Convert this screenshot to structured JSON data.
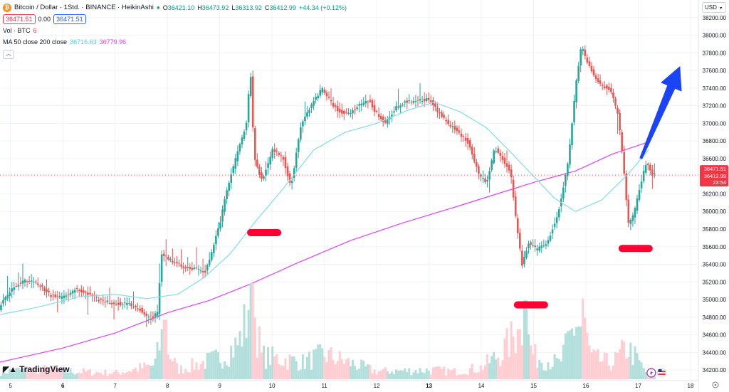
{
  "legend": {
    "symbol": "Bitcoin / Dollar · 1Std. · BINANCE · HeikinAshi",
    "ohlc": [
      {
        "k": "O",
        "v": "36421.10"
      },
      {
        "k": "H",
        "v": "36473.92"
      },
      {
        "k": "L",
        "v": "36313.92"
      },
      {
        "k": "C",
        "v": "36412.99"
      }
    ],
    "change": "+44.34 (+0.12%)",
    "bid": "36471.51",
    "spread": "0.00",
    "ask": "36471.51",
    "vol_label": "Vol · BTC",
    "vol_value": "6",
    "ma_label": "MA 50 close 200 close",
    "ma50_value": "36716.63",
    "ma200_value": "36779.96"
  },
  "currency": "USD",
  "branding": "TradingView",
  "price_tags": {
    "last": "36471.51",
    "close": "36412.99",
    "countdown": "23:54"
  },
  "colors": {
    "up": "#26a69a",
    "down": "#ef5350",
    "ma50": "#80deea",
    "ma200": "#e040fb",
    "arrow": "#1a44f5",
    "marker": "#ff0033"
  },
  "chart_data": {
    "type": "candlestick",
    "xlim": [
      4.8,
      18.15
    ],
    "ylim": [
      34080,
      38400
    ],
    "y_ticks": [
      34200,
      34400,
      34600,
      34800,
      35000,
      35200,
      35400,
      35600,
      35800,
      36000,
      36200,
      36400,
      36600,
      36800,
      37000,
      37200,
      37400,
      37600,
      37800,
      38000,
      38200
    ],
    "y_tick_labels": [
      "34200.00",
      "34400.00",
      "34600.00",
      "34800.00",
      "35000.00",
      "35200.00",
      "35400.00",
      "35600.00",
      "35800.00",
      "36000.00",
      "36200.00",
      "36400.00",
      "36600.00",
      "36800.00",
      "37000.00",
      "37200.00",
      "37400.00",
      "37600.00",
      "37800.00",
      "38000.00",
      "38200.00"
    ],
    "x_ticks": [
      5,
      6,
      7,
      8,
      9,
      10,
      11,
      12,
      13,
      14,
      15,
      16,
      17,
      18
    ],
    "x_tick_labels": [
      "5",
      "6",
      "7",
      "8",
      "9",
      "10",
      "11",
      "12",
      "13",
      "14",
      "15",
      "16",
      "17",
      "18"
    ],
    "x_tick_bold": [
      false,
      true,
      false,
      false,
      false,
      false,
      false,
      false,
      true,
      false,
      false,
      false,
      false,
      false
    ],
    "price_path": [
      [
        4.8,
        34880
      ],
      [
        5.05,
        35120
      ],
      [
        5.3,
        35220
      ],
      [
        5.55,
        35180
      ],
      [
        5.8,
        35050
      ],
      [
        6.05,
        35020
      ],
      [
        6.3,
        35120
      ],
      [
        6.55,
        35050
      ],
      [
        6.8,
        34980
      ],
      [
        7.05,
        34960
      ],
      [
        7.3,
        34950
      ],
      [
        7.5,
        34900
      ],
      [
        7.7,
        34780
      ],
      [
        7.85,
        34850
      ],
      [
        7.93,
        35520
      ],
      [
        8.05,
        35460
      ],
      [
        8.3,
        35380
      ],
      [
        8.55,
        35350
      ],
      [
        8.75,
        35300
      ],
      [
        8.9,
        35560
      ],
      [
        9.05,
        35880
      ],
      [
        9.2,
        36300
      ],
      [
        9.4,
        36700
      ],
      [
        9.55,
        37000
      ],
      [
        9.63,
        37600
      ],
      [
        9.7,
        36600
      ],
      [
        9.85,
        36350
      ],
      [
        10.05,
        36700
      ],
      [
        10.25,
        36620
      ],
      [
        10.4,
        36280
      ],
      [
        10.6,
        37000
      ],
      [
        10.8,
        37220
      ],
      [
        11.0,
        37400
      ],
      [
        11.15,
        37250
      ],
      [
        11.3,
        37150
      ],
      [
        11.5,
        37100
      ],
      [
        11.7,
        37200
      ],
      [
        11.9,
        37260
      ],
      [
        12.0,
        37150
      ],
      [
        12.2,
        37000
      ],
      [
        12.4,
        37180
      ],
      [
        12.6,
        37250
      ],
      [
        12.85,
        37260
      ],
      [
        13.05,
        37270
      ],
      [
        13.2,
        37150
      ],
      [
        13.4,
        37000
      ],
      [
        13.6,
        36900
      ],
      [
        13.8,
        36780
      ],
      [
        14.0,
        36400
      ],
      [
        14.15,
        36330
      ],
      [
        14.3,
        36720
      ],
      [
        14.45,
        36600
      ],
      [
        14.6,
        36450
      ],
      [
        14.72,
        35820
      ],
      [
        14.82,
        35400
      ],
      [
        14.95,
        35650
      ],
      [
        15.1,
        35560
      ],
      [
        15.3,
        35650
      ],
      [
        15.5,
        35960
      ],
      [
        15.7,
        36550
      ],
      [
        15.85,
        37450
      ],
      [
        15.95,
        37870
      ],
      [
        16.1,
        37650
      ],
      [
        16.3,
        37450
      ],
      [
        16.5,
        37380
      ],
      [
        16.65,
        37120
      ],
      [
        16.75,
        36580
      ],
      [
        16.85,
        35850
      ],
      [
        16.95,
        35950
      ],
      [
        17.1,
        36350
      ],
      [
        17.2,
        36550
      ],
      [
        17.3,
        36420
      ]
    ],
    "volume_path": [
      [
        4.8,
        0.1
      ],
      [
        5.5,
        0.13
      ],
      [
        6.2,
        0.1
      ],
      [
        7.0,
        0.08
      ],
      [
        7.75,
        0.18
      ],
      [
        7.9,
        0.55
      ],
      [
        8.2,
        0.12
      ],
      [
        9.0,
        0.28
      ],
      [
        9.35,
        0.45
      ],
      [
        9.63,
        1.0
      ],
      [
        9.8,
        0.3
      ],
      [
        10.6,
        0.22
      ],
      [
        11.0,
        0.32
      ],
      [
        12.0,
        0.1
      ],
      [
        13.0,
        0.12
      ],
      [
        13.5,
        0.1
      ],
      [
        14.0,
        0.15
      ],
      [
        14.4,
        0.35
      ],
      [
        14.8,
        0.72
      ],
      [
        15.0,
        0.3
      ],
      [
        15.5,
        0.2
      ],
      [
        15.9,
        0.9
      ],
      [
        16.1,
        0.28
      ],
      [
        16.5,
        0.2
      ],
      [
        16.8,
        0.42
      ],
      [
        17.2,
        0.05
      ]
    ],
    "volume_spikes": [
      [
        7.95,
        0.62
      ],
      [
        9.55,
        0.72
      ],
      [
        9.65,
        1.0
      ],
      [
        14.72,
        0.52
      ],
      [
        14.84,
        0.82
      ],
      [
        15.88,
        0.55
      ],
      [
        15.95,
        0.84
      ],
      [
        16.85,
        0.38
      ]
    ],
    "ma50": [
      [
        4.8,
        34830
      ],
      [
        5.5,
        34910
      ],
      [
        6.3,
        35030
      ],
      [
        7.0,
        35060
      ],
      [
        7.6,
        35010
      ],
      [
        8.2,
        35060
      ],
      [
        8.7,
        35250
      ],
      [
        9.2,
        35520
      ],
      [
        9.7,
        35900
      ],
      [
        10.2,
        36250
      ],
      [
        10.8,
        36700
      ],
      [
        11.4,
        36900
      ],
      [
        12.0,
        37000
      ],
      [
        12.6,
        37150
      ],
      [
        13.1,
        37240
      ],
      [
        13.6,
        37130
      ],
      [
        14.1,
        36950
      ],
      [
        14.6,
        36650
      ],
      [
        15.0,
        36400
      ],
      [
        15.4,
        36150
      ],
      [
        15.8,
        36000
      ],
      [
        16.3,
        36130
      ],
      [
        16.8,
        36420
      ],
      [
        17.2,
        36700
      ]
    ],
    "ma200": [
      [
        4.8,
        34290
      ],
      [
        6.0,
        34450
      ],
      [
        7.0,
        34620
      ],
      [
        8.0,
        34850
      ],
      [
        8.8,
        34990
      ],
      [
        9.6,
        35180
      ],
      [
        10.5,
        35420
      ],
      [
        11.5,
        35670
      ],
      [
        12.5,
        35870
      ],
      [
        13.5,
        36050
      ],
      [
        14.3,
        36200
      ],
      [
        15.0,
        36330
      ],
      [
        15.8,
        36460
      ],
      [
        16.5,
        36650
      ],
      [
        17.2,
        36790
      ]
    ],
    "support_markers": [
      [
        9.85,
        35760
      ],
      [
        14.95,
        34940
      ],
      [
        16.95,
        35580
      ]
    ],
    "trend_arrow": {
      "from": [
        17.05,
        36600
      ],
      "to": [
        17.8,
        37650
      ]
    },
    "last_price_line": 36412.99
  }
}
